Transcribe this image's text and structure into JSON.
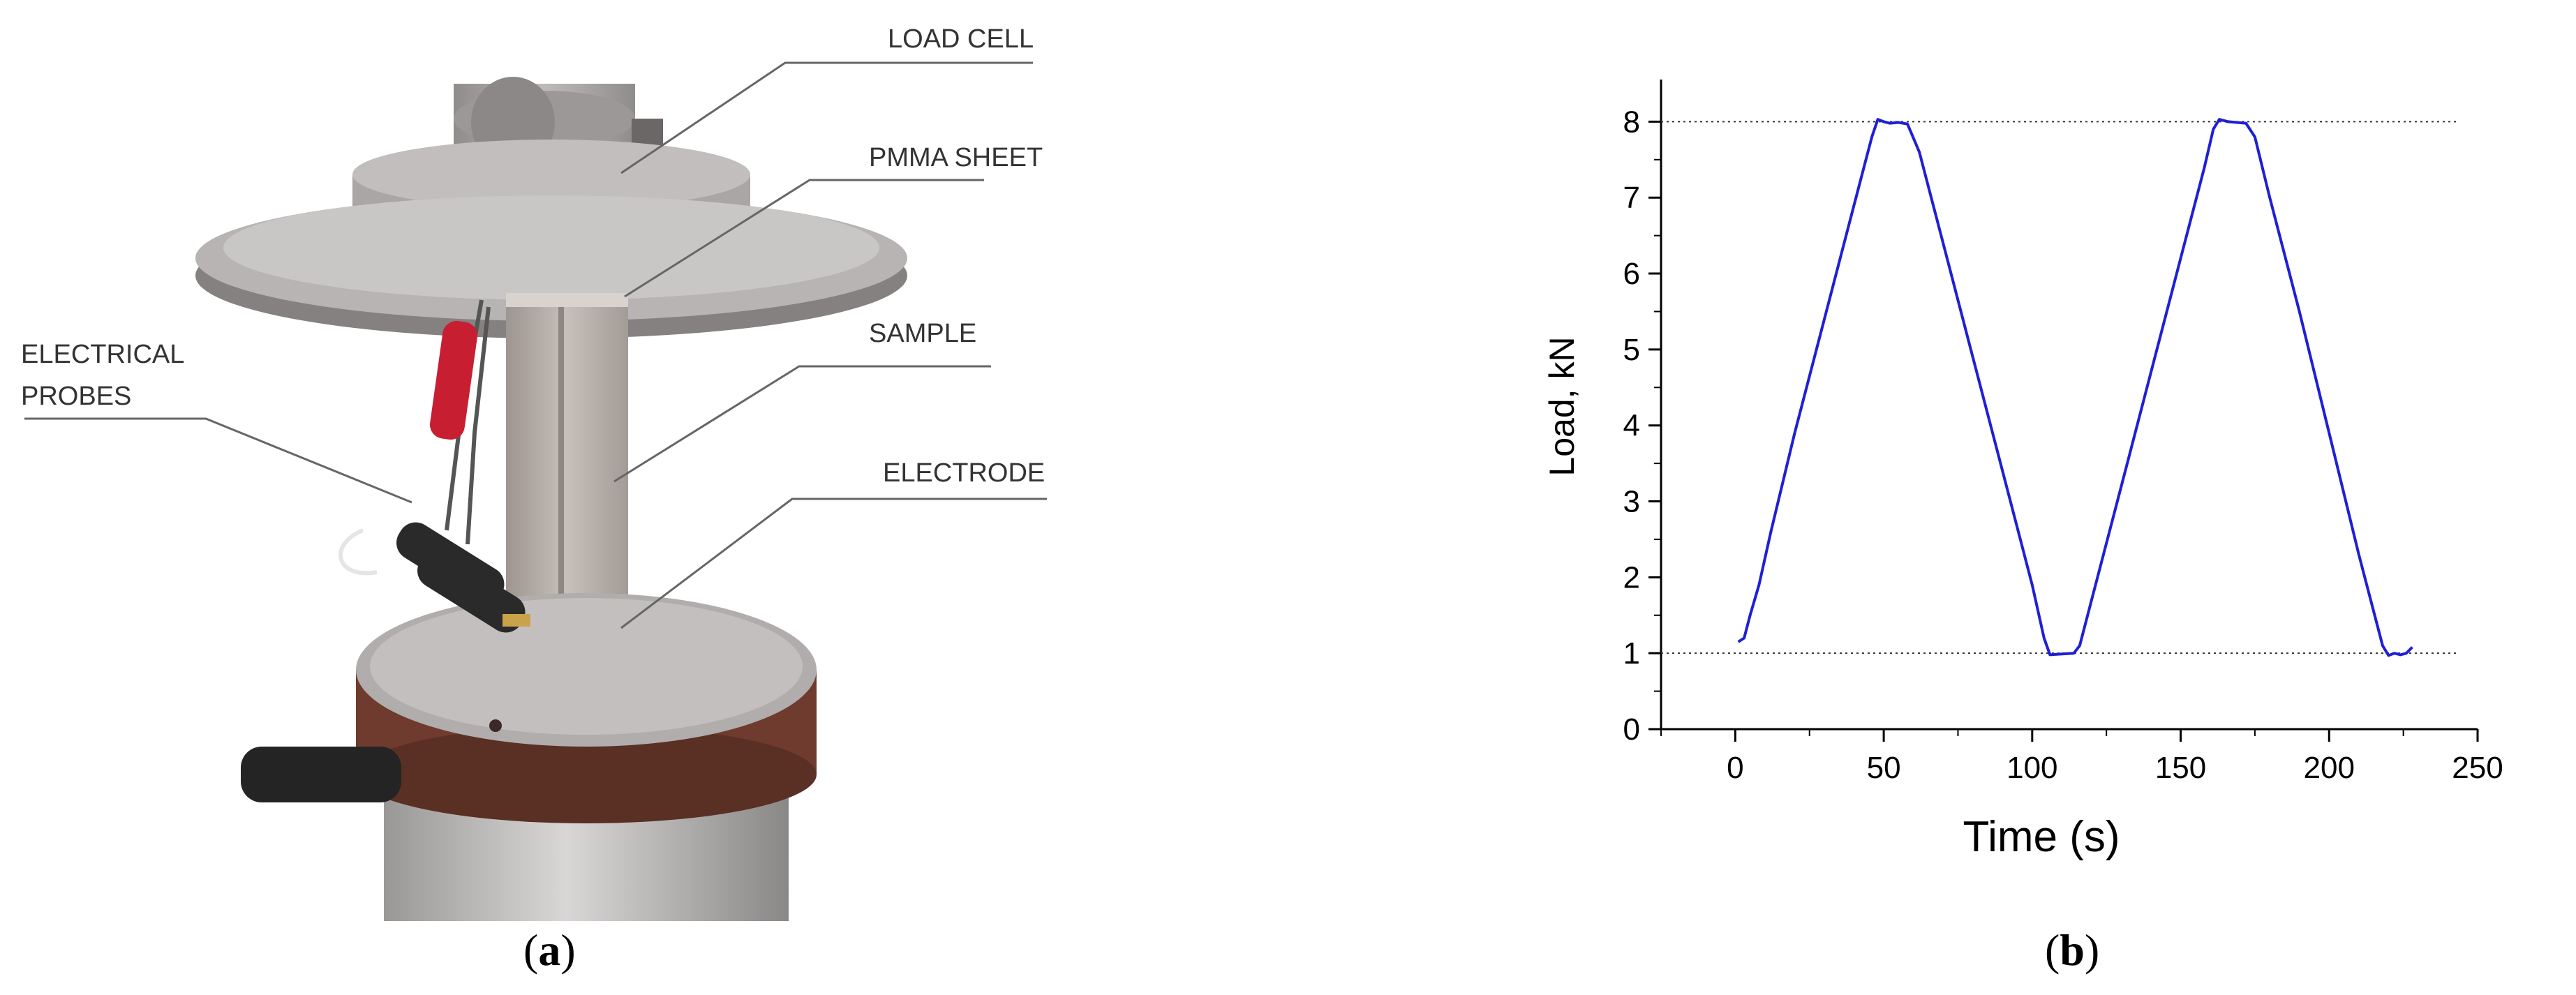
{
  "panels": {
    "a": {
      "caption_open": "(",
      "caption_letter": "a",
      "caption_close": ")",
      "callouts": [
        {
          "key": "load_cell",
          "label": "LOAD CELL"
        },
        {
          "key": "pmma_sheet",
          "label": "PMMA SHEET"
        },
        {
          "key": "electrical_probes_1",
          "label": "ELECTRICAL"
        },
        {
          "key": "electrical_probes_2",
          "label": "PROBES"
        },
        {
          "key": "sample",
          "label": "SAMPLE"
        },
        {
          "key": "electrode",
          "label": "ELECTRODE"
        }
      ],
      "colors": {
        "fixture_metal": "#a7a5a4",
        "fixture_dark": "#7c7776",
        "base_band": "#6e3b2e",
        "sample": "#b3ada7",
        "probe_red": "#c81e32",
        "probe_black": "#2a2a2a",
        "electrode_copper": "#c99a7e"
      }
    },
    "b": {
      "caption_open": "(",
      "caption_letter": "b",
      "caption_close": ")"
    }
  },
  "chart_data": {
    "type": "line",
    "title": "",
    "xlabel": "Time (s)",
    "ylabel": "Load, kN",
    "xlim": [
      -25,
      250
    ],
    "ylim": [
      0,
      8.5
    ],
    "xticks": [
      0,
      50,
      100,
      150,
      200,
      250
    ],
    "yticks": [
      0,
      1,
      2,
      3,
      4,
      5,
      6,
      7,
      8
    ],
    "reference_lines": [
      1,
      8
    ],
    "grid": false,
    "line_color": "#1f1fd6",
    "series": [
      {
        "x": [
          1,
          3,
          5,
          8,
          12,
          20,
          30,
          40,
          46,
          48,
          50,
          52,
          55,
          58,
          62,
          70,
          80,
          90,
          100,
          104,
          106,
          110,
          114,
          116,
          120,
          130,
          140,
          150,
          158,
          161,
          163,
          166,
          169,
          172,
          175,
          180,
          190,
          200,
          210,
          218,
          220,
          222,
          224,
          226,
          228
        ],
        "y": [
          1.15,
          1.2,
          1.5,
          1.9,
          2.6,
          3.9,
          5.4,
          6.9,
          7.8,
          8.03,
          8.0,
          7.98,
          7.99,
          7.97,
          7.6,
          6.4,
          4.9,
          3.4,
          1.9,
          1.2,
          0.98,
          0.99,
          1.0,
          1.1,
          1.7,
          3.2,
          4.7,
          6.2,
          7.4,
          7.9,
          8.03,
          8.0,
          7.99,
          7.98,
          7.8,
          7.0,
          5.5,
          3.9,
          2.3,
          1.1,
          0.97,
          1.0,
          0.98,
          1.0,
          1.08
        ]
      }
    ]
  }
}
